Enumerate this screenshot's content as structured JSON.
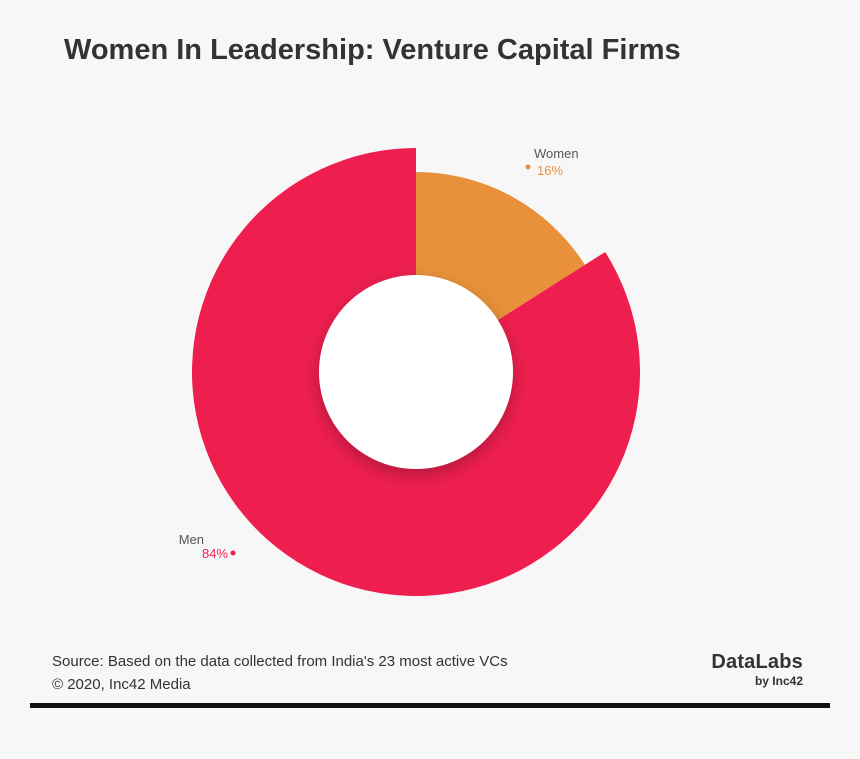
{
  "title": "Women In Leadership: Venture Capital Firms",
  "chart_data": {
    "type": "pie",
    "variant": "donut",
    "categories": [
      "Women",
      "Men"
    ],
    "values": [
      16,
      84
    ],
    "value_labels": [
      "16%",
      "84%"
    ],
    "colors": [
      "#e8913a",
      "#ee1f4f"
    ],
    "title": "Women In Leadership: Venture Capital Firms"
  },
  "footer": {
    "source": "Source: Based on the data collected from India's 23 most active VCs",
    "copyright": "© 2020, Inc42 Media"
  },
  "brand": {
    "name": "DataLabs",
    "byline": "by Inc42"
  }
}
